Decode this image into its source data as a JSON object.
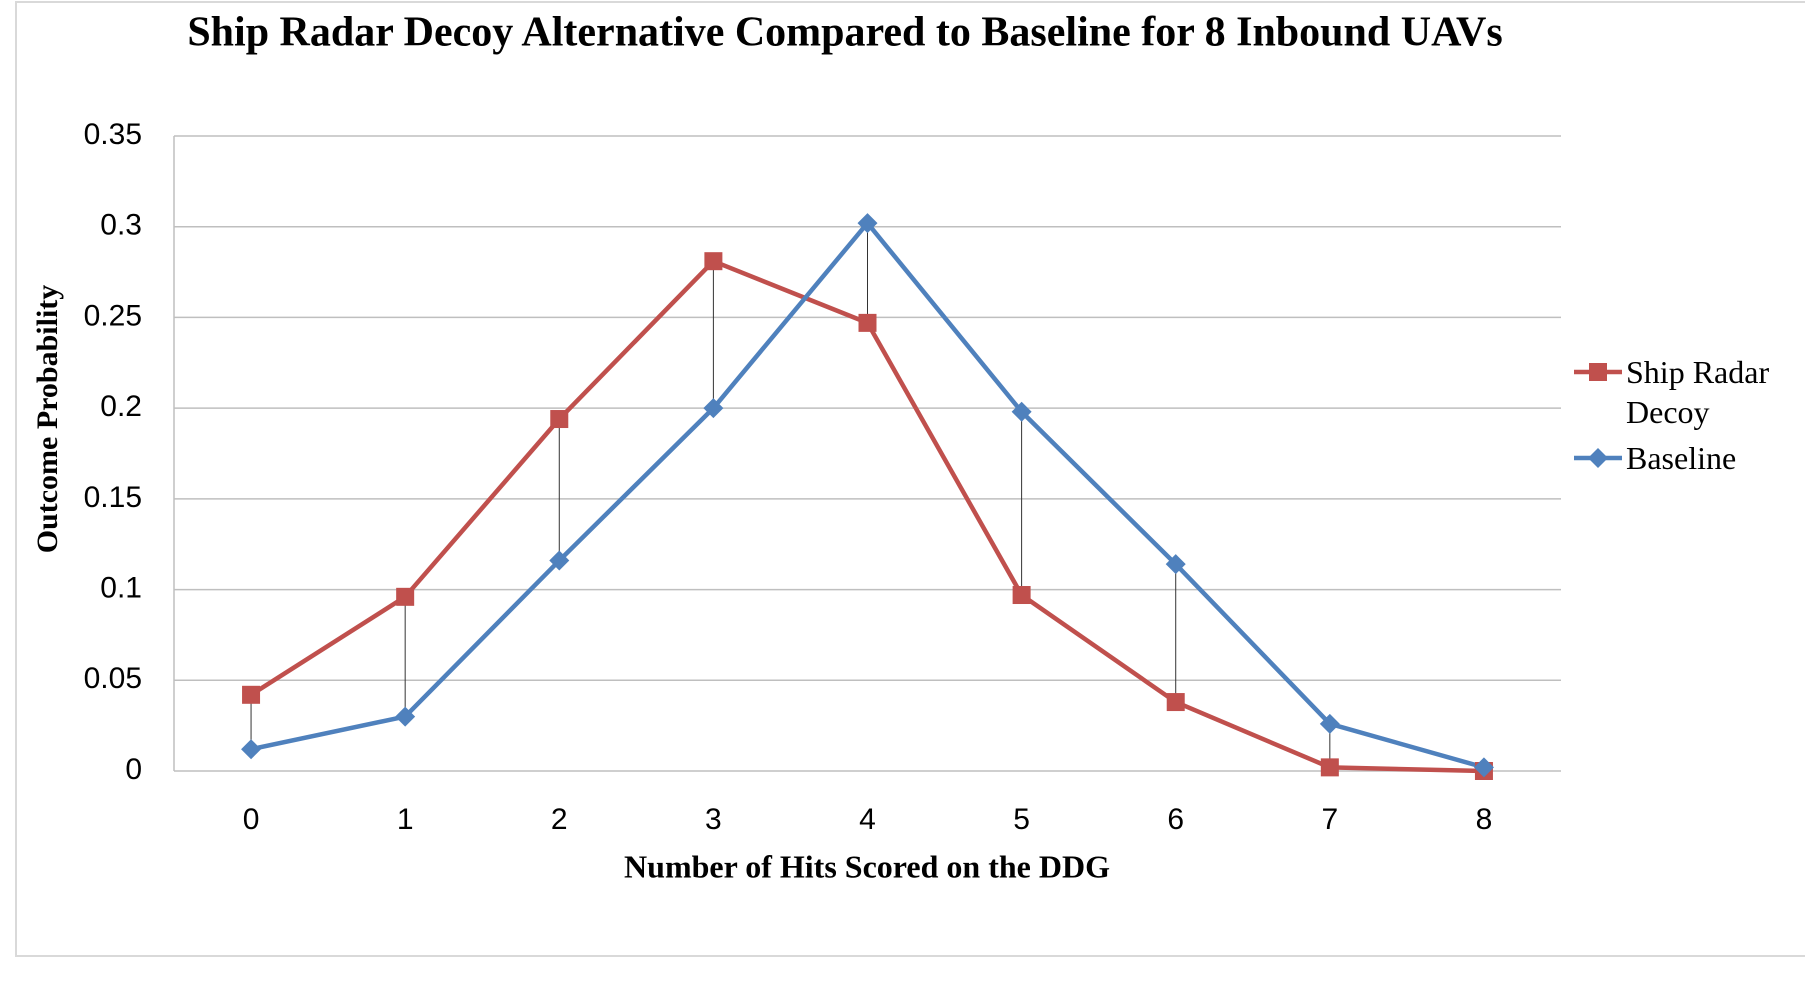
{
  "chart_data": {
    "type": "line",
    "title": "Ship Radar Decoy Alternative Compared to Baseline for 8 Inbound UAVs",
    "x_label": "Number of Hits Scored on the DDG",
    "y_label": "Outcome Probability",
    "categories": [
      "0",
      "1",
      "2",
      "3",
      "4",
      "5",
      "6",
      "7",
      "8"
    ],
    "series": [
      {
        "name": "Ship Radar Decoy",
        "color": "#c0504d",
        "marker": "square",
        "values": [
          0.042,
          0.096,
          0.194,
          0.281,
          0.247,
          0.097,
          0.038,
          0.002,
          0.0
        ]
      },
      {
        "name": "Baseline",
        "color": "#4f81bd",
        "marker": "diamond",
        "values": [
          0.012,
          0.03,
          0.116,
          0.2,
          0.302,
          0.198,
          0.114,
          0.026,
          0.002
        ]
      }
    ],
    "ylim": [
      0,
      0.35
    ],
    "yticks": [
      0,
      0.05,
      0.1,
      0.15,
      0.2,
      0.25,
      0.3,
      0.35
    ],
    "grid": true,
    "high_low_lines": true,
    "legend": "right"
  }
}
